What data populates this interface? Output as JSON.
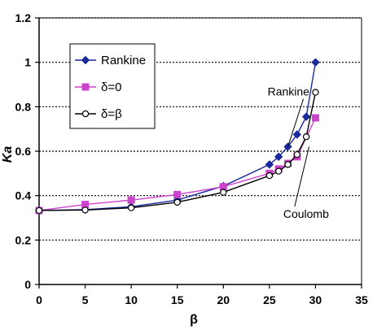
{
  "chart_data": {
    "type": "line",
    "title": "",
    "xlabel": "β",
    "ylabel": "Ka",
    "xlim": [
      0,
      35
    ],
    "ylim": [
      0,
      1.2
    ],
    "xticks": [
      0,
      5,
      10,
      15,
      20,
      25,
      30,
      35
    ],
    "yticks": [
      0,
      0.2,
      0.4,
      0.6,
      0.8,
      1,
      1.2
    ],
    "ytick_labels": [
      "0",
      "0.2",
      "0.4",
      "0.6",
      "0.8",
      "1",
      "1.2"
    ],
    "xtick_labels": [
      "0",
      "5",
      "10",
      "15",
      "20",
      "25",
      "30",
      "35"
    ],
    "grid": "horizontal dotted",
    "legend_placement": "top-left",
    "series": [
      {
        "name": "Rankine",
        "color": "#1a2a9a",
        "marker": "diamond",
        "x": [
          0,
          5,
          10,
          15,
          20,
          25,
          26,
          27,
          28,
          29,
          30
        ],
        "y": [
          0.333,
          0.337,
          0.35,
          0.38,
          0.443,
          0.54,
          0.575,
          0.62,
          0.675,
          0.755,
          1.0
        ]
      },
      {
        "name": "δ=0",
        "color": "#cc44cc",
        "marker": "square",
        "x": [
          0,
          5,
          10,
          15,
          20,
          25,
          26,
          27,
          28,
          30
        ],
        "y": [
          0.333,
          0.36,
          0.38,
          0.405,
          0.44,
          0.5,
          0.52,
          0.545,
          0.575,
          0.75
        ]
      },
      {
        "name": "δ=β",
        "color": "#000000",
        "marker": "circle",
        "x": [
          0,
          5,
          10,
          15,
          20,
          25,
          26,
          27,
          28,
          29,
          30
        ],
        "y": [
          0.333,
          0.335,
          0.345,
          0.37,
          0.415,
          0.49,
          0.51,
          0.54,
          0.585,
          0.665,
          0.865
        ]
      }
    ],
    "annotations": [
      {
        "text": "Rankine",
        "x": 24.8,
        "y": 0.85,
        "arrow_to": [
          27,
          0.62
        ]
      },
      {
        "text": "Coulomb",
        "x": 26.5,
        "y": 0.3,
        "arrow_to": [
          29.3,
          0.62
        ]
      }
    ]
  }
}
